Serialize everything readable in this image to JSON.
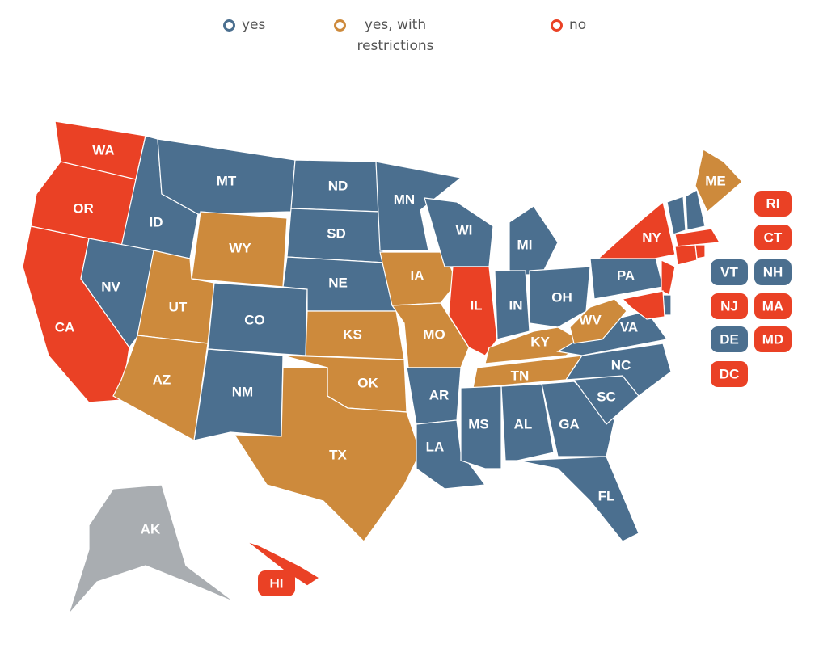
{
  "legend": [
    {
      "label": "yes",
      "color": "#4b6f8f"
    },
    {
      "label": "yes, with restrictions",
      "color": "#cd8a3c"
    },
    {
      "label": "no",
      "color": "#ea4125"
    }
  ],
  "no_data_color": "#a9adb1",
  "states": [
    {
      "abbr": "WA",
      "status": "no"
    },
    {
      "abbr": "OR",
      "status": "no"
    },
    {
      "abbr": "CA",
      "status": "no"
    },
    {
      "abbr": "ID",
      "status": "yes"
    },
    {
      "abbr": "NV",
      "status": "yes"
    },
    {
      "abbr": "MT",
      "status": "yes"
    },
    {
      "abbr": "WY",
      "status": "yes, with restrictions"
    },
    {
      "abbr": "UT",
      "status": "yes, with restrictions"
    },
    {
      "abbr": "AZ",
      "status": "yes, with restrictions"
    },
    {
      "abbr": "CO",
      "status": "yes"
    },
    {
      "abbr": "NM",
      "status": "yes"
    },
    {
      "abbr": "ND",
      "status": "yes"
    },
    {
      "abbr": "SD",
      "status": "yes"
    },
    {
      "abbr": "NE",
      "status": "yes"
    },
    {
      "abbr": "KS",
      "status": "yes, with restrictions"
    },
    {
      "abbr": "OK",
      "status": "yes, with restrictions"
    },
    {
      "abbr": "TX",
      "status": "yes, with restrictions"
    },
    {
      "abbr": "MN",
      "status": "yes"
    },
    {
      "abbr": "IA",
      "status": "yes, with restrictions"
    },
    {
      "abbr": "MO",
      "status": "yes, with restrictions"
    },
    {
      "abbr": "AR",
      "status": "yes"
    },
    {
      "abbr": "LA",
      "status": "yes"
    },
    {
      "abbr": "WI",
      "status": "yes"
    },
    {
      "abbr": "IL",
      "status": "no"
    },
    {
      "abbr": "MI",
      "status": "yes"
    },
    {
      "abbr": "IN",
      "status": "yes"
    },
    {
      "abbr": "OH",
      "status": "yes"
    },
    {
      "abbr": "KY",
      "status": "yes, with restrictions"
    },
    {
      "abbr": "TN",
      "status": "yes, with restrictions"
    },
    {
      "abbr": "MS",
      "status": "yes"
    },
    {
      "abbr": "AL",
      "status": "yes"
    },
    {
      "abbr": "GA",
      "status": "yes"
    },
    {
      "abbr": "FL",
      "status": "yes"
    },
    {
      "abbr": "SC",
      "status": "yes"
    },
    {
      "abbr": "NC",
      "status": "yes"
    },
    {
      "abbr": "VA",
      "status": "yes"
    },
    {
      "abbr": "WV",
      "status": "yes, with restrictions"
    },
    {
      "abbr": "PA",
      "status": "yes"
    },
    {
      "abbr": "NY",
      "status": "no"
    },
    {
      "abbr": "NJ",
      "status": "no"
    },
    {
      "abbr": "VT",
      "status": "yes"
    },
    {
      "abbr": "NH",
      "status": "yes"
    },
    {
      "abbr": "ME",
      "status": "yes, with restrictions"
    },
    {
      "abbr": "MA",
      "status": "no"
    },
    {
      "abbr": "CT",
      "status": "no"
    },
    {
      "abbr": "RI",
      "status": "no"
    },
    {
      "abbr": "DE",
      "status": "yes"
    },
    {
      "abbr": "MD",
      "status": "no"
    },
    {
      "abbr": "DC",
      "status": "no"
    },
    {
      "abbr": "AK",
      "status": null
    },
    {
      "abbr": "HI",
      "status": "no"
    }
  ]
}
